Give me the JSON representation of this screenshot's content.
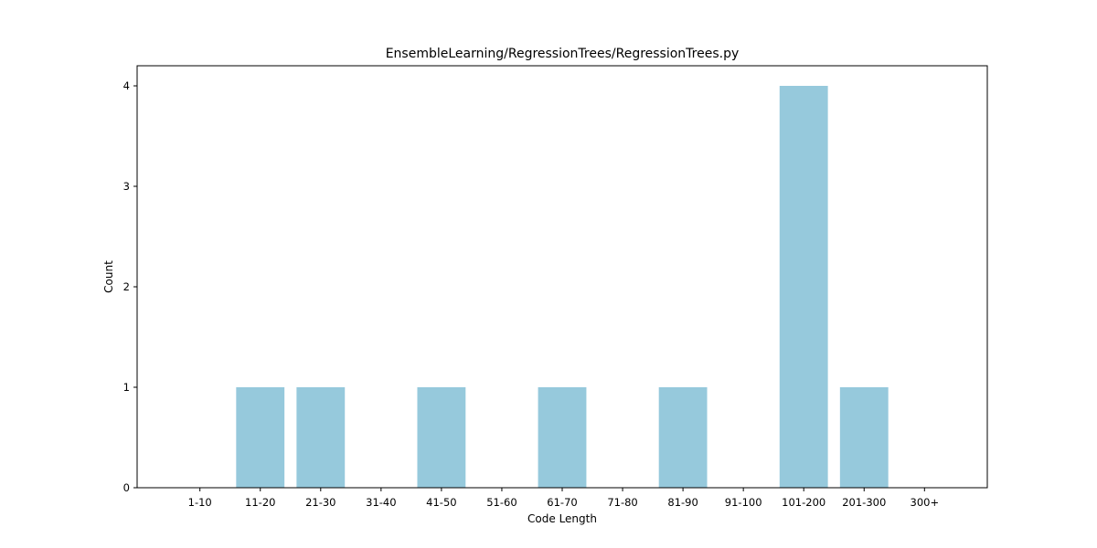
{
  "chart_data": {
    "type": "bar",
    "title": "EnsembleLearning/RegressionTrees/RegressionTrees.py",
    "xlabel": "Code Length",
    "ylabel": "Count",
    "categories": [
      "1-10",
      "11-20",
      "21-30",
      "31-40",
      "41-50",
      "51-60",
      "61-70",
      "71-80",
      "81-90",
      "91-100",
      "101-200",
      "201-300",
      "300+"
    ],
    "values": [
      0,
      1,
      1,
      0,
      1,
      0,
      1,
      0,
      1,
      0,
      4,
      1,
      0
    ],
    "ylim": [
      0,
      4.2
    ],
    "yticks": [
      0,
      1,
      2,
      3,
      4
    ],
    "bar_color": "#96c9dc",
    "grid": false,
    "legend": "none"
  }
}
